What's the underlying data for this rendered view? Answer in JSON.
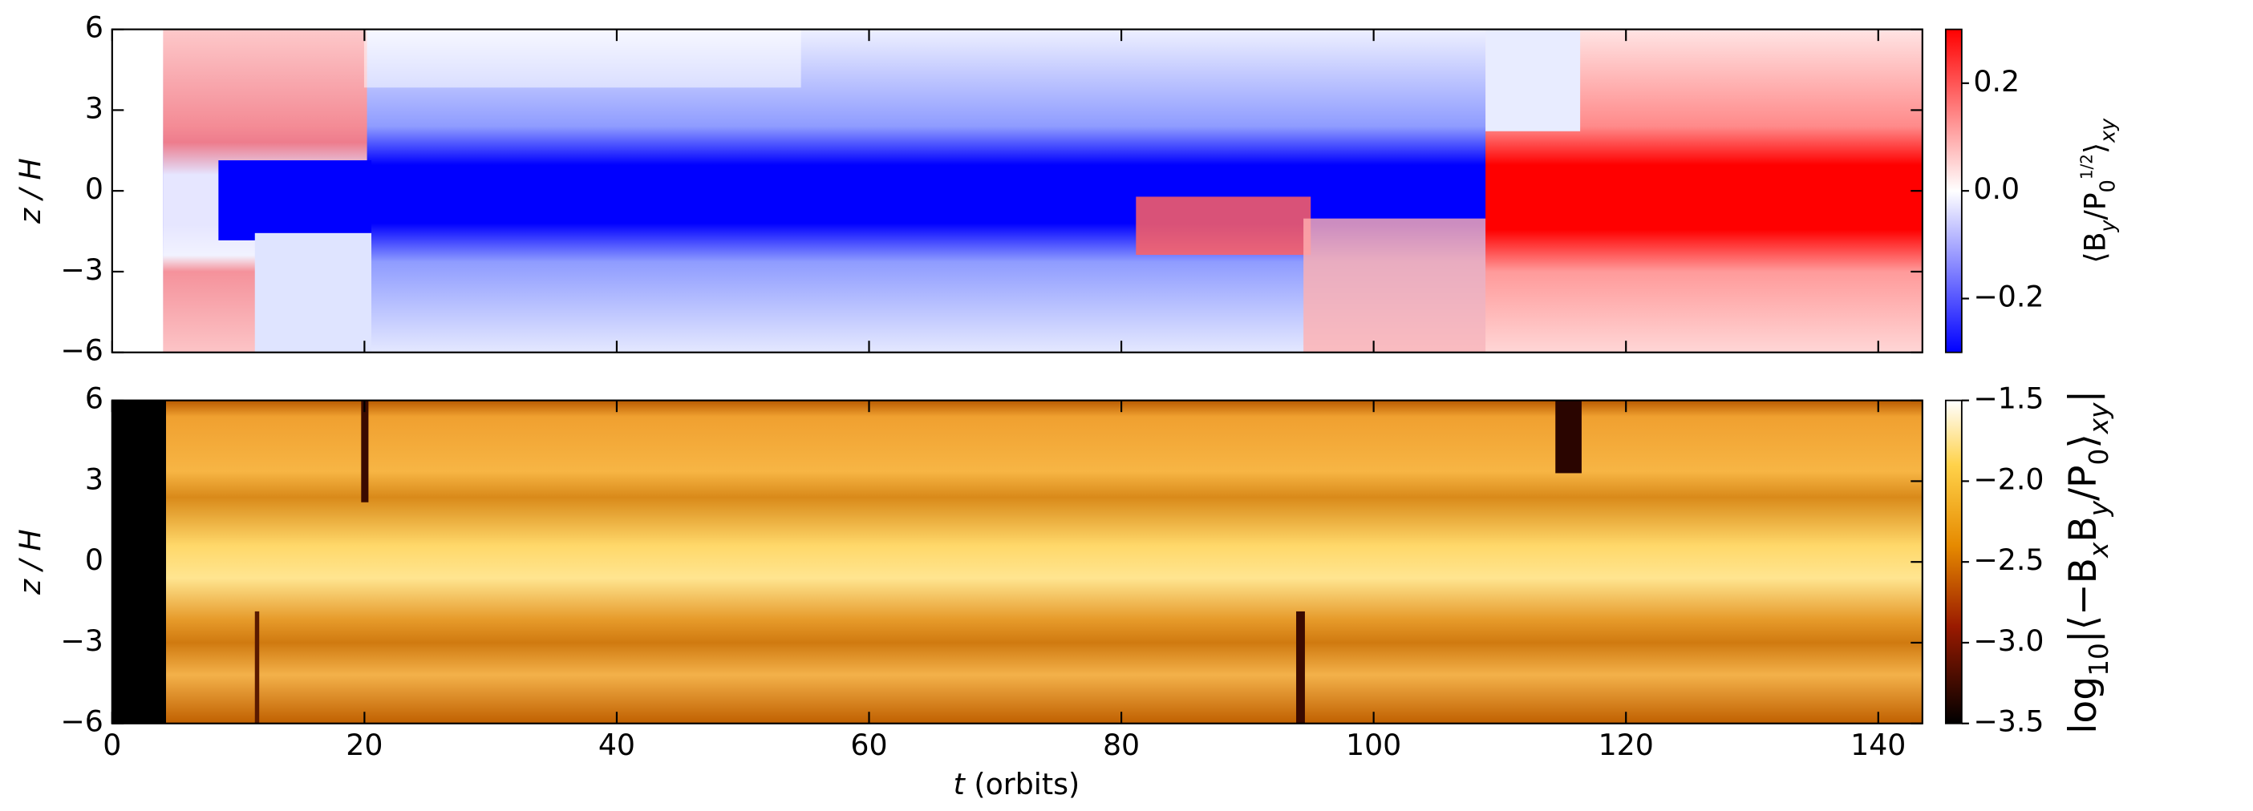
{
  "chart_data": [
    {
      "type": "heatmap",
      "ylabel": "z / H",
      "xlim": [
        0,
        143.5
      ],
      "xticks": [
        0,
        20,
        40,
        60,
        80,
        100,
        120,
        140
      ],
      "ylim": [
        -6,
        6
      ],
      "yticks": [
        {
          "value": -6,
          "label": "−6"
        },
        {
          "value": -3,
          "label": "−3"
        },
        0,
        3,
        6
      ],
      "colorbar": {
        "lim": [
          -0.3,
          0.3
        ],
        "ticks": [
          {
            "value": -0.2,
            "label": "−0.2"
          },
          {
            "value": 0,
            "label": "0.0"
          },
          0.2
        ],
        "colormap": "bwr",
        "label": [
          "⟨B",
          "y",
          "/P",
          "0",
          "1/2",
          "⟩",
          "xy"
        ]
      }
    },
    {
      "type": "heatmap",
      "ylabel": "z / H",
      "xlabel": [
        "t",
        " (orbits)"
      ],
      "xlim": [
        0,
        143.5
      ],
      "xticks": [
        0,
        20,
        40,
        60,
        80,
        100,
        120,
        140
      ],
      "ylim": [
        -6,
        6
      ],
      "yticks": [
        {
          "value": -6,
          "label": "−6"
        },
        {
          "value": -3,
          "label": "−3"
        },
        0,
        3,
        6
      ],
      "colorbar": {
        "lim": [
          -3.5,
          -1.5
        ],
        "ticks": [
          {
            "value": -3.5,
            "label": "−3.5"
          },
          {
            "value": -3.0,
            "label": "−3.0"
          },
          {
            "value": -2.5,
            "label": "−2.5"
          },
          {
            "value": -2.0,
            "label": "−2.0"
          },
          {
            "value": -1.5,
            "label": "−1.5"
          }
        ],
        "colormap": "afmhot",
        "label": [
          "log",
          "10",
          "|⟨−B",
          "x",
          "B",
          "y",
          "/P",
          "0",
          "⟩",
          "xy",
          "|"
        ]
      }
    }
  ]
}
